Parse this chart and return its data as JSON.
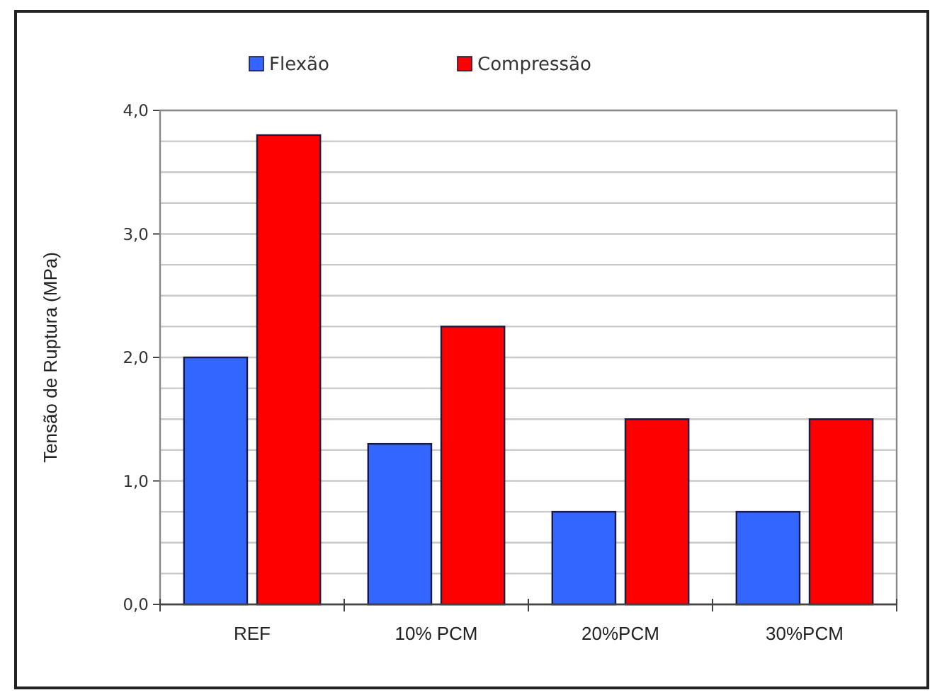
{
  "chart_data": {
    "type": "bar",
    "ylabel": "Tensão de Ruptura (MPa)",
    "categories": [
      "REF",
      "10% PCM",
      "20%PCM",
      "30%PCM"
    ],
    "series": [
      {
        "name": "Flexão",
        "color": "#3366ff",
        "values": [
          2.0,
          1.3,
          0.75,
          0.75
        ]
      },
      {
        "name": "Compressão",
        "color": "#ff0000",
        "values": [
          3.8,
          2.25,
          1.5,
          1.5
        ]
      }
    ],
    "ylim": [
      0,
      4
    ],
    "yticks": [
      {
        "value": 0,
        "label": "0,0"
      },
      {
        "value": 0.25,
        "label": null
      },
      {
        "value": 0.5,
        "label": null
      },
      {
        "value": 0.75,
        "label": null
      },
      {
        "value": 1,
        "label": "1,0"
      },
      {
        "value": 1.25,
        "label": null
      },
      {
        "value": 1.5,
        "label": null
      },
      {
        "value": 1.75,
        "label": null
      },
      {
        "value": 2,
        "label": "2,0"
      },
      {
        "value": 2.25,
        "label": null
      },
      {
        "value": 2.5,
        "label": null
      },
      {
        "value": 2.75,
        "label": null
      },
      {
        "value": 3,
        "label": "3,0"
      },
      {
        "value": 3.25,
        "label": null
      },
      {
        "value": 3.5,
        "label": null
      },
      {
        "value": 3.75,
        "label": null
      },
      {
        "value": 4,
        "label": "4,0"
      }
    ],
    "grid": "y",
    "legend": "top"
  }
}
